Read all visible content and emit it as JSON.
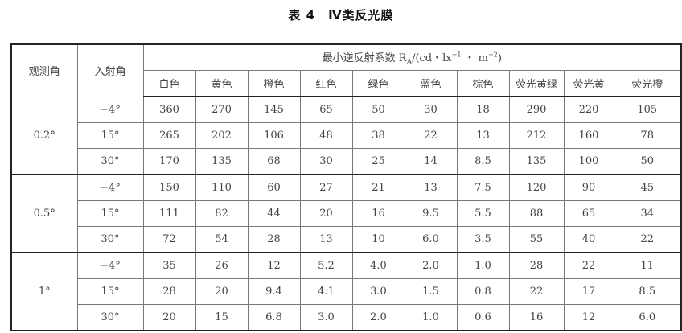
{
  "title": "表 4　Ⅳ类反光膜",
  "table": {
    "header_observation": "观测角",
    "header_incidence": "入射角",
    "header_group": "最小逆反射系数 R",
    "header_group_sub": "A",
    "header_group_unit": "/(cd・lx",
    "header_unit_exp1": "−1",
    "header_unit_mid": " ・ m",
    "header_unit_exp2": "−2",
    "header_unit_end": ")",
    "colors": [
      "白色",
      "黄色",
      "橙色",
      "红色",
      "绿色",
      "蓝色",
      "棕色",
      "荧光黄绿",
      "荧光黄",
      "荧光橙"
    ],
    "groups": [
      {
        "observation": "0.2°",
        "rows": [
          {
            "incidence": "−4°",
            "values": [
              "360",
              "270",
              "145",
              "65",
              "50",
              "30",
              "18",
              "290",
              "220",
              "105"
            ]
          },
          {
            "incidence": "15°",
            "values": [
              "265",
              "202",
              "106",
              "48",
              "38",
              "22",
              "13",
              "212",
              "160",
              "78"
            ]
          },
          {
            "incidence": "30°",
            "values": [
              "170",
              "135",
              "68",
              "30",
              "25",
              "14",
              "8.5",
              "135",
              "100",
              "50"
            ]
          }
        ]
      },
      {
        "observation": "0.5°",
        "rows": [
          {
            "incidence": "−4°",
            "values": [
              "150",
              "110",
              "60",
              "27",
              "21",
              "13",
              "7.5",
              "120",
              "90",
              "45"
            ]
          },
          {
            "incidence": "15°",
            "values": [
              "111",
              "82",
              "44",
              "20",
              "16",
              "9.5",
              "5.5",
              "88",
              "65",
              "34"
            ]
          },
          {
            "incidence": "30°",
            "values": [
              "72",
              "54",
              "28",
              "13",
              "10",
              "6.0",
              "3.5",
              "55",
              "40",
              "22"
            ]
          }
        ]
      },
      {
        "observation": "1°",
        "rows": [
          {
            "incidence": "−4°",
            "values": [
              "35",
              "26",
              "12",
              "5.2",
              "4.0",
              "2.0",
              "1.0",
              "28",
              "22",
              "11"
            ]
          },
          {
            "incidence": "15°",
            "values": [
              "28",
              "20",
              "9.4",
              "4.1",
              "3.0",
              "1.5",
              "0.8",
              "22",
              "17",
              "8.5"
            ]
          },
          {
            "incidence": "30°",
            "values": [
              "20",
              "15",
              "6.8",
              "3.0",
              "2.0",
              "1.0",
              "0.6",
              "16",
              "12",
              "6.0"
            ]
          }
        ]
      }
    ]
  }
}
